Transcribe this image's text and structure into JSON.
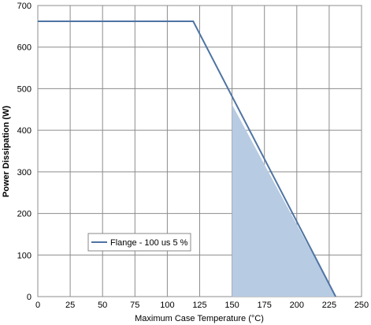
{
  "chart_data": {
    "type": "line",
    "title": "",
    "xlabel": "Maximum Case Temperature (°C)",
    "ylabel": "Power Dissipation (W)",
    "xlim": [
      0,
      250
    ],
    "ylim": [
      0,
      700
    ],
    "x_ticks": [
      0,
      25,
      50,
      75,
      100,
      125,
      150,
      175,
      200,
      225,
      250
    ],
    "y_ticks": [
      0,
      100,
      200,
      300,
      400,
      500,
      600,
      700
    ],
    "grid": true,
    "legend_position": "lower-left",
    "series": [
      {
        "name": "Flange - 100 us 5 %",
        "color": "#4f74a3",
        "points": [
          [
            0,
            662
          ],
          [
            120,
            662
          ],
          [
            230,
            0
          ]
        ]
      }
    ],
    "shaded_region": {
      "color": "#b7cbe3",
      "points": [
        [
          150,
          0
        ],
        [
          150,
          462
        ],
        [
          230,
          0
        ]
      ]
    }
  }
}
